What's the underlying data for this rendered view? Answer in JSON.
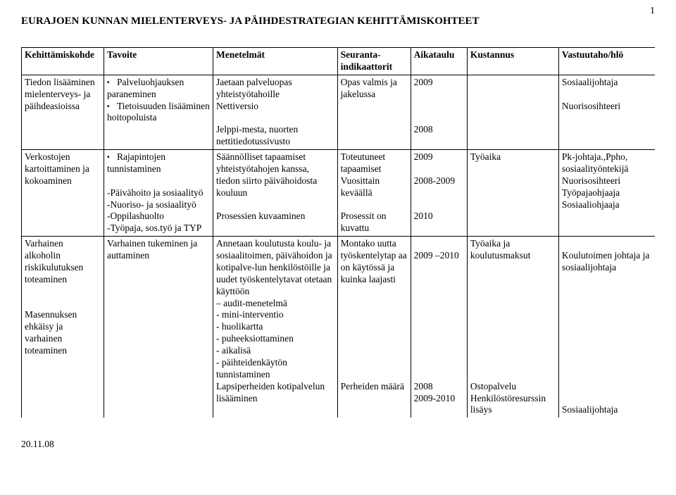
{
  "page_number": "1",
  "title": "EURAJOEN KUNNAN MIELENTERVEYS- JA PÄIHDESTRATEGIAN KEHITTÄMISKOHTEET",
  "footer_date": "20.11.08",
  "columns": {
    "c1": "Kehittämiskohde",
    "c2": "Tavoite",
    "c3": "Menetelmät",
    "c4_top": "Seuranta-",
    "c4_bot": "indikaattorit",
    "c5": "Aikataulu",
    "c6": "Kustannus",
    "c7": "Vastuutaho/hlö"
  },
  "rows": [
    {
      "kohde": "Tiedon lisääminen mielenterveys- ja päihdeasioissa",
      "tavoite_bullets": [
        "Palveluohjauksen paraneminen",
        "Tietoisuuden lisääminen hoitopoluista"
      ],
      "menetelmat": [
        "Jaetaan palveluopas yhteistyötahoille",
        "Nettiversio",
        "",
        "Jelppi-mesta, nuorten nettitiedotussivusto"
      ],
      "indikaattorit": [
        "Opas valmis ja jakelussa"
      ],
      "aikataulu": [
        "2009",
        "",
        "",
        "",
        "2008"
      ],
      "kustannus": [
        ""
      ],
      "vastuu": [
        "Sosiaalijohtaja",
        "",
        "Nuorisosihteeri"
      ]
    },
    {
      "kohde": "Verkostojen kartoittaminen ja kokoaminen",
      "tavoite_bullets": [
        "Rajapintojen tunnistaminen"
      ],
      "tavoite_extra": [
        "",
        "-Päivähoito ja sosiaalityö",
        "-Nuoriso- ja sosiaalityö",
        "-Oppilashuolto",
        "-Työpaja, sos.työ ja TYP"
      ],
      "menetelmat": [
        "Säännölliset tapaamiset yhteistyötahojen kanssa, tiedon siirto päivähoidosta kouluun",
        "",
        "Prosessien kuvaaminen"
      ],
      "indikaattorit": [
        "Toteutuneet tapaamiset",
        "Vuosittain keväällä",
        "",
        "Prosessit on kuvattu"
      ],
      "aikataulu": [
        "2009",
        "",
        "2008-2009",
        "",
        "",
        "2010"
      ],
      "kustannus": [
        "Työaika"
      ],
      "vastuu": [
        "Pk-johtaja.,Ppho, sosiaalityöntekijä",
        "Nuorisosihteeri",
        "Työpajaohjaaja",
        "Sosiaaliohjaaja"
      ]
    },
    {
      "kohde_multi": [
        "Varhainen alkoholin riskikulutuksen toteaminen",
        "",
        "",
        "Masennuksen ehkäisy ja varhainen toteaminen"
      ],
      "tavoite_plain": [
        "Varhainen tukeminen ja auttaminen"
      ],
      "menetelmat": [
        "Annetaan koulutusta koulu- ja sosiaalitoimen, päivähoidon ja kotipalve-lun henkilöstöille ja uudet työskentelytavat otetaan käyttöön",
        "– audit-menetelmä",
        "- mini-interventio",
        "- huolikartta",
        "- puheeksiottaminen",
        "- aikalisä",
        "- päihteidenkäytön tunnistaminen",
        "Lapsiperheiden kotipalvelun lisääminen"
      ],
      "indikaattorit": [
        "Montako uutta työskentelytap aa on käytössä ja kuinka laajasti",
        "",
        "",
        "",
        "",
        "",
        "",
        "",
        "",
        "Perheiden määrä"
      ],
      "aikataulu": [
        "",
        "2009 –2010",
        "",
        "",
        "",
        "",
        "",
        "",
        "",
        "",
        "",
        "",
        "2008",
        "2009-2010"
      ],
      "kustannus": [
        "Työaika ja koulutusmaksut",
        "",
        "",
        "",
        "",
        "",
        "",
        "",
        "",
        "",
        "",
        "Ostopalvelu",
        "Henkilöstöresurssin lisäys"
      ],
      "vastuu": [
        "",
        "Koulutoimen johtaja ja sosiaalijohtaja",
        "",
        "",
        "",
        "",
        "",
        "",
        "",
        "",
        "",
        "",
        "",
        "Sosiaalijohtaja"
      ]
    }
  ]
}
